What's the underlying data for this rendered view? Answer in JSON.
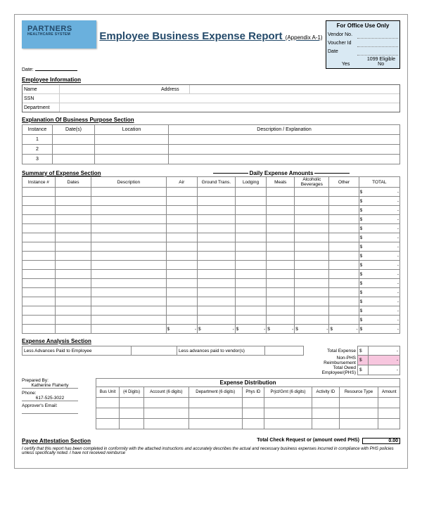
{
  "logo": {
    "name": "PARTNERS",
    "sub": "HEALTHCARE SYSTEM"
  },
  "title": "Employee Business Expense Report",
  "appendix": "(Appendix A-1)",
  "date_label": "Date:",
  "office": {
    "heading": "For Office Use Only",
    "rows": [
      "Vendor No.",
      "Voucher Id",
      "Date"
    ],
    "eligible": "1099 Eligible",
    "yes": "Yes",
    "no": "No"
  },
  "emp_info": {
    "heading": "Employee Information",
    "name": "Name",
    "address": "Address",
    "ssn": "SSN",
    "dept": "Department"
  },
  "purpose": {
    "heading": "Explanation Of Business Purpose Section",
    "cols": [
      "Instance",
      "Date(s)",
      "Location",
      "Description / Explanation"
    ],
    "rows": [
      "1",
      "2",
      "3"
    ]
  },
  "summary": {
    "heading": "Summary of Expense Section",
    "daily": "Daily Expense Amounts",
    "cols": [
      "Instance #",
      "Dates",
      "Description",
      "Air",
      "Ground Trans.",
      "Lodging",
      "Meals",
      "Alcoholic Beverages",
      "Other",
      "TOTAL"
    ],
    "num_body_rows": 15,
    "dollar": "$",
    "dash": "-"
  },
  "analysis": {
    "heading": "Expense Analysis Section",
    "left1": "Less Advances Paid to Employee",
    "left2": "Less advances paid to vendor(s)",
    "r1": "Total Expense",
    "r2": "Non-PHS Reimbursement",
    "r3": "Total Owed Employee/(PHS)"
  },
  "dist": {
    "heading": "Expense Distribution",
    "cols": [
      "Bus Unit",
      "(4 Digits)",
      "Account (6 digits)",
      "Department (6 digits)",
      "Phys ID",
      "Prjct/Grnt (6 digits)",
      "Activity ID",
      "Resource Type",
      "Amount"
    ]
  },
  "prepared": {
    "by": "Prepared By:",
    "name": "Katherine Flaherty",
    "phone_lbl": "Phone:",
    "phone": "617-525-3022",
    "approver": "Approver's Email:"
  },
  "payee": {
    "heading": "Payee Attestation Section",
    "text": "I certify that this report has been completed in conformity with the attached instructions and accurately describes the actual and necessary business expenses incurred in compliance with PHS policies unless specifically noted. I have not received reimburse",
    "total_lbl": "Total Check Request or (amount owed PHS)",
    "total_val": "0.00"
  }
}
